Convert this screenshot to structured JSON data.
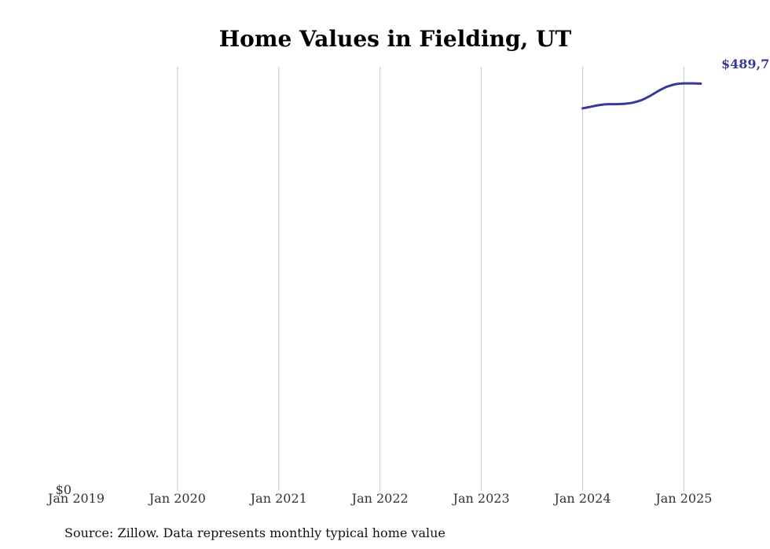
{
  "chart_data": {
    "type": "line",
    "title": "Home Values in Fielding, UT",
    "xlabel": "",
    "ylabel": "",
    "x_ticks": [
      "Jan 2019",
      "Jan 2020",
      "Jan 2021",
      "Jan 2022",
      "Jan 2023",
      "Jan 2024",
      "Jan 2025"
    ],
    "y_ticks": [
      "$0"
    ],
    "ylim": [
      0,
      510000
    ],
    "grid": "vertical",
    "source": "Source: Zillow. Data represents monthly typical home value",
    "end_label": "$489,7",
    "series": [
      {
        "color": "#38389a",
        "points": [
          {
            "x": "2024-01",
            "y": 460000
          },
          {
            "x": "2024-02",
            "y": 462000
          },
          {
            "x": "2024-03",
            "y": 464000
          },
          {
            "x": "2024-04",
            "y": 465000
          },
          {
            "x": "2024-05",
            "y": 465000
          },
          {
            "x": "2024-06",
            "y": 465500
          },
          {
            "x": "2024-07",
            "y": 467000
          },
          {
            "x": "2024-08",
            "y": 470000
          },
          {
            "x": "2024-09",
            "y": 475000
          },
          {
            "x": "2024-10",
            "y": 481000
          },
          {
            "x": "2024-11",
            "y": 486000
          },
          {
            "x": "2024-12",
            "y": 489000
          },
          {
            "x": "2025-01",
            "y": 490000
          },
          {
            "x": "2025-02",
            "y": 490000
          },
          {
            "x": "2025-03",
            "y": 489700
          }
        ]
      }
    ]
  }
}
